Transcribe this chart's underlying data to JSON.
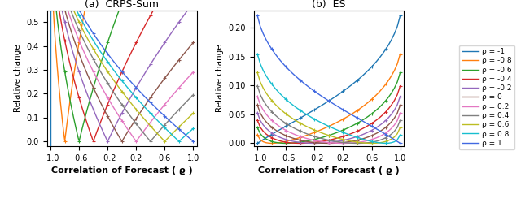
{
  "rho_values": [
    -1,
    -0.8,
    -0.6,
    -0.4,
    -0.2,
    0,
    0.2,
    0.4,
    0.6,
    0.8,
    1
  ],
  "colors": [
    "#1f77b4",
    "#ff7f0e",
    "#2ca02c",
    "#d62728",
    "#9467bd",
    "#8c564b",
    "#e377c2",
    "#7f7f7f",
    "#bcbd22",
    "#17becf",
    "#4169e1"
  ],
  "legend_labels": [
    "ρ = -1",
    "ρ = -0.8",
    "ρ = -0.6",
    "ρ = -0.4",
    "ρ = -0.2",
    "ρ = 0",
    "ρ = 0.2",
    "ρ = 0.4",
    "ρ = 0.6",
    "ρ = 0.8",
    "ρ = 1"
  ],
  "xlabel": "Correlation of Forecast ( ϱ )",
  "ylabel": "Relative change",
  "title_a": "(a)  CRPS-Sum",
  "title_b": "(b)  ES",
  "x_ticks": [
    -1.0,
    -0.6,
    -0.2,
    0.2,
    0.6,
    1.0
  ],
  "crps_ylim": [
    -0.02,
    0.55
  ],
  "es_ylim": [
    -0.005,
    0.23
  ]
}
